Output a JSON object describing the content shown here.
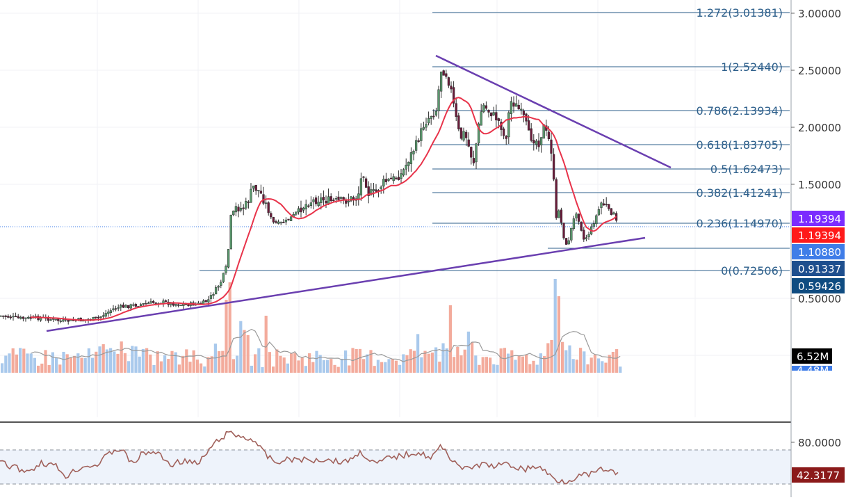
{
  "chart_data": {
    "type": "candlestick",
    "price_axis": {
      "scale": "log",
      "tick_labels": [
        "3.00000",
        "2.50000",
        "2.00000",
        "1.50000",
        "0.50000"
      ]
    },
    "fibonacci": [
      {
        "label": "1.272(3.01381)",
        "ratio": 1.272,
        "price": 3.01381
      },
      {
        "label": "1(2.52440)",
        "ratio": 1,
        "price": 2.5244
      },
      {
        "label": "0.786(2.13934)",
        "ratio": 0.786,
        "price": 2.13934
      },
      {
        "label": "0.618(1.83705)",
        "ratio": 0.618,
        "price": 1.83705
      },
      {
        "label": "0.5(1.62473)",
        "ratio": 0.5,
        "price": 1.62473
      },
      {
        "label": "0.382(1.41241)",
        "ratio": 0.382,
        "price": 1.41241
      },
      {
        "label": "0.236(1.14970)",
        "ratio": 0.236,
        "price": 1.1497
      },
      {
        "label": "0(0.72506)",
        "ratio": 0,
        "price": 0.72506
      }
    ],
    "price_tags": [
      {
        "label": "1.19394",
        "color": "#7b2cff"
      },
      {
        "label": "1.19394",
        "color": "#ff1a1a"
      },
      {
        "label": "1.10880",
        "color": "#3f7de8"
      },
      {
        "label": "0.91337",
        "color": "#1e4f8e"
      },
      {
        "label": "0.59426",
        "color": "#0f4c81"
      }
    ],
    "volume_tags": [
      {
        "label": "6.52M",
        "color": "#000000"
      },
      {
        "label": "4.48M",
        "color": "#3f7de8"
      }
    ],
    "rsi": {
      "tick_labels": [
        "80.0000"
      ],
      "current": "42.3177",
      "current_color": "#8b1a1a"
    },
    "colors": {
      "up": "#5a9a6e",
      "down": "#6a1b3a",
      "ma": "#e8334a",
      "trendline": "#6a3fb0",
      "fib": "#2d5f8b",
      "vol_up": "#a9c9ec",
      "vol_down": "#f3ab9c",
      "vol_ma": "#9a9a9a",
      "rsi": "#a0605a"
    }
  }
}
